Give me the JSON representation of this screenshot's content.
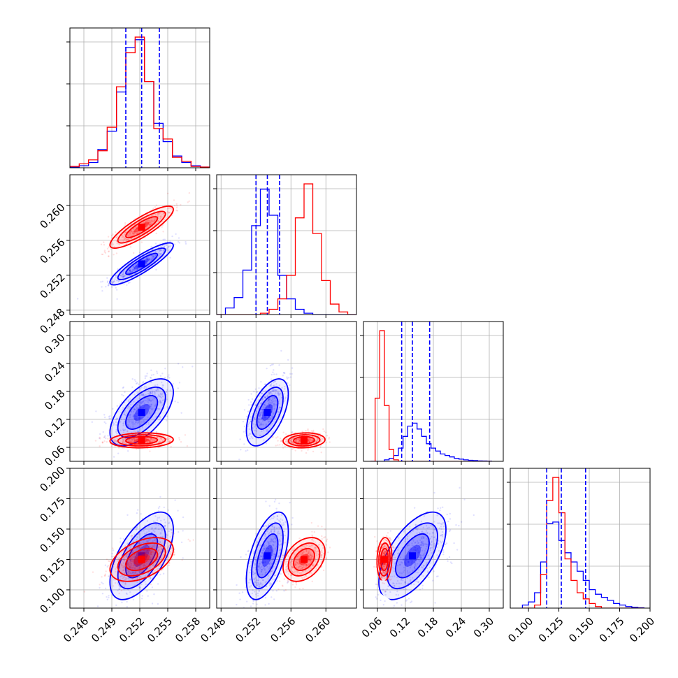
{
  "chart_data": {
    "type": "corner",
    "parameters": [
      {
        "range": [
          0.2445,
          0.2595
        ],
        "ticks": [
          0.246,
          0.249,
          0.252,
          0.255,
          0.258
        ],
        "tick_labels": [
          "0.246",
          "0.249",
          "0.252",
          "0.255",
          "0.258"
        ]
      },
      {
        "range": [
          0.2475,
          0.2635
        ],
        "ticks": [
          0.248,
          0.252,
          0.256,
          0.26
        ],
        "tick_labels": [
          "0.248",
          "0.252",
          "0.256",
          "0.260"
        ]
      },
      {
        "range": [
          0.03,
          0.33
        ],
        "ticks": [
          0.06,
          0.12,
          0.18,
          0.24,
          0.3
        ],
        "tick_labels": [
          "0.06",
          "0.12",
          "0.18",
          "0.24",
          "0.30"
        ]
      },
      {
        "range": [
          0.085,
          0.2
        ],
        "ticks": [
          0.1,
          0.125,
          0.15,
          0.175,
          0.2
        ],
        "tick_labels": [
          "0.100",
          "0.125",
          "0.150",
          "0.175",
          "0.200"
        ]
      }
    ],
    "series": [
      {
        "color": "#0000ff",
        "means": [
          0.2522,
          0.2533,
          0.135,
          0.128
        ],
        "stds": [
          0.0017,
          0.0012,
          0.036,
          0.018
        ],
        "correlations": [
          [
            0,
            1,
            0.88
          ],
          [
            0,
            2,
            0.6
          ],
          [
            1,
            2,
            0.55
          ],
          [
            0,
            3,
            0.6
          ],
          [
            1,
            3,
            0.55
          ],
          [
            2,
            3,
            0.6
          ]
        ],
        "quantiles": [
          [
            0.2505,
            0.2522,
            0.2541
          ],
          [
            0.252,
            0.2533,
            0.2547
          ],
          [
            0.112,
            0.135,
            0.172
          ],
          [
            0.115,
            0.127,
            0.147
          ]
        ]
      },
      {
        "color": "#ff0000",
        "means": [
          0.2522,
          0.2575,
          0.075,
          0.125
        ],
        "stds": [
          0.0017,
          0.0012,
          0.008,
          0.009
        ],
        "correlations": [
          [
            0,
            1,
            0.85
          ],
          [
            0,
            2,
            0.1
          ],
          [
            1,
            2,
            0.1
          ],
          [
            0,
            3,
            0.45
          ],
          [
            1,
            3,
            0.35
          ],
          [
            2,
            3,
            0.1
          ]
        ],
        "quantiles": []
      }
    ],
    "histograms": [
      {
        "bin_edges": [
          0.2445,
          0.2455,
          0.2465,
          0.2475,
          0.2485,
          0.2495,
          0.2505,
          0.2515,
          0.2525,
          0.2535,
          0.2545,
          0.2555,
          0.2565,
          0.2575,
          0.2585,
          0.2595
        ],
        "blue": [
          0.005,
          0.015,
          0.04,
          0.14,
          0.28,
          0.58,
          0.92,
          0.98,
          0.66,
          0.34,
          0.2,
          0.09,
          0.04,
          0.015,
          0.005
        ],
        "red": [
          0.01,
          0.03,
          0.06,
          0.13,
          0.31,
          0.62,
          0.88,
          1.0,
          0.66,
          0.3,
          0.22,
          0.08,
          0.05,
          0.01,
          0.005
        ]
      },
      {
        "bin_edges": [
          0.2475,
          0.2485,
          0.2495,
          0.2505,
          0.2515,
          0.2525,
          0.2535,
          0.2545,
          0.2555,
          0.2565,
          0.2575,
          0.2585,
          0.2595,
          0.2605,
          0.2615,
          0.2625,
          0.2635
        ],
        "blue": [
          0.0,
          0.05,
          0.13,
          0.34,
          0.68,
          0.96,
          0.76,
          0.3,
          0.12,
          0.04,
          0.01,
          0.0,
          0.0,
          0.0,
          0.0,
          0.0
        ],
        "red": [
          0.0,
          0.0,
          0.0,
          0.0,
          0.0,
          0.01,
          0.04,
          0.12,
          0.3,
          0.74,
          1.0,
          0.62,
          0.26,
          0.08,
          0.02,
          0.0
        ]
      },
      {
        "bin_edges": [
          0.045,
          0.055,
          0.065,
          0.075,
          0.085,
          0.095,
          0.105,
          0.115,
          0.125,
          0.135,
          0.145,
          0.155,
          0.165,
          0.175,
          0.185,
          0.195,
          0.205,
          0.215,
          0.225,
          0.235,
          0.245,
          0.255,
          0.265,
          0.275,
          0.285,
          0.295,
          0.305
        ],
        "blue": [
          0.0,
          0.0,
          0.0,
          0.01,
          0.02,
          0.04,
          0.09,
          0.17,
          0.24,
          0.26,
          0.22,
          0.17,
          0.12,
          0.09,
          0.07,
          0.05,
          0.04,
          0.03,
          0.02,
          0.015,
          0.01,
          0.007,
          0.005,
          0.003,
          0.002,
          0.001
        ],
        "red": [
          0.0,
          0.43,
          0.89,
          0.38,
          0.08,
          0.01,
          0.0,
          0.0,
          0.0,
          0.0,
          0.0,
          0.0,
          0.0,
          0.0,
          0.0,
          0.0,
          0.0,
          0.0,
          0.0,
          0.0,
          0.0,
          0.0,
          0.0,
          0.0,
          0.0,
          0.0
        ]
      },
      {
        "bin_edges": [
          0.095,
          0.1,
          0.105,
          0.11,
          0.115,
          0.12,
          0.125,
          0.13,
          0.135,
          0.14,
          0.145,
          0.15,
          0.155,
          0.16,
          0.165,
          0.17,
          0.175,
          0.18,
          0.185,
          0.19,
          0.195
        ],
        "blue": [
          0.02,
          0.04,
          0.1,
          0.3,
          0.55,
          0.56,
          0.44,
          0.36,
          0.3,
          0.24,
          0.18,
          0.12,
          0.09,
          0.07,
          0.05,
          0.03,
          0.02,
          0.01,
          0.005,
          0.002
        ],
        "red": [
          0.0,
          0.0,
          0.02,
          0.22,
          0.7,
          0.85,
          0.62,
          0.32,
          0.18,
          0.1,
          0.06,
          0.03,
          0.01,
          0.0,
          0.0,
          0.0,
          0.0,
          0.0,
          0.0,
          0.0
        ]
      }
    ],
    "grid": true,
    "title": "",
    "xlabel": "",
    "ylabel": ""
  }
}
